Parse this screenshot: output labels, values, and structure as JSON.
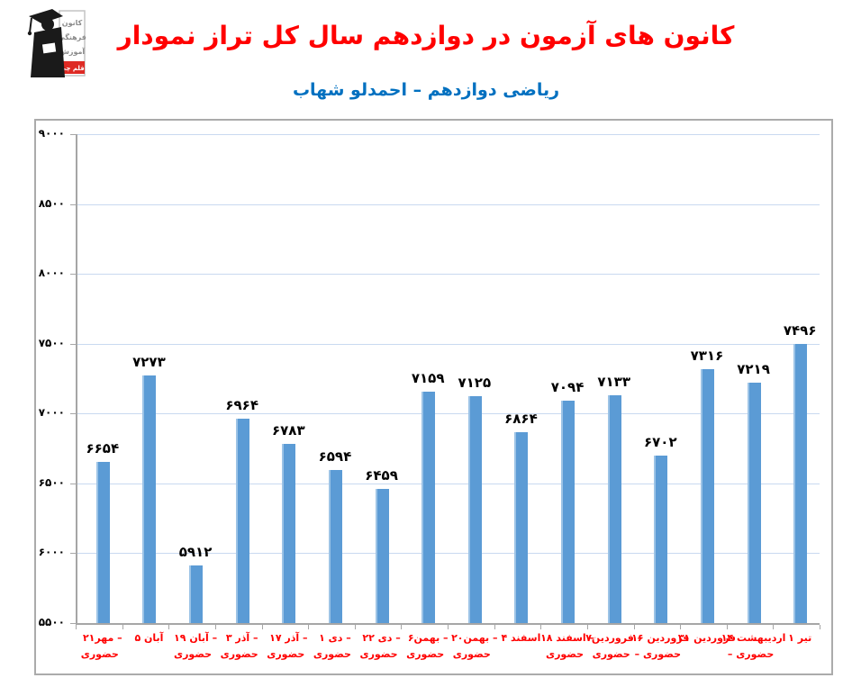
{
  "header": {
    "title": "نمودار تراز کل سال دوازدهم در آزمون های کانون",
    "subtitle": "شهاب احمدلو – دوازدهم ریاضی",
    "title_color": "#FF0000",
    "subtitle_color": "#0070C0",
    "logo": {
      "line1": "کانون",
      "line2": "فرهنگی",
      "line3": "آموزش",
      "badge": "قلم چی"
    }
  },
  "chart_data": {
    "type": "bar",
    "title": "نمودار تراز کل سال دوازدهم در آزمون های کانون",
    "subtitle": "شهاب احمدلو – دوازدهم ریاضی",
    "xlabel": "",
    "ylabel": "",
    "ylim": [
      5500,
      9000
    ],
    "ytick_step": 500,
    "grid": true,
    "legend": "none",
    "bar_color": "#5B9BD5",
    "bar_highlight_color": "#9CC3E6",
    "gridline_color": "#C9D9F0",
    "axis_color": "#A6A6A6",
    "value_label_color": "#000000",
    "xtick_label_color": "#FF0000",
    "yticks": [
      {
        "value": 9000,
        "label": "۹۰۰۰"
      },
      {
        "value": 8500,
        "label": "۸۵۰۰"
      },
      {
        "value": 8000,
        "label": "۸۰۰۰"
      },
      {
        "value": 7500,
        "label": "۷۵۰۰"
      },
      {
        "value": 7000,
        "label": "۷۰۰۰"
      },
      {
        "value": 6500,
        "label": "۶۵۰۰"
      },
      {
        "value": 6000,
        "label": "۶۰۰۰"
      },
      {
        "value": 5500,
        "label": "۵۵۰۰"
      }
    ],
    "categories": [
      {
        "line1": "۲۱مهر –",
        "line2": "حضوری",
        "value": 6654,
        "value_label": "۶۶۵۴"
      },
      {
        "line1": "۵ آبان",
        "line2": "",
        "value": 7273,
        "value_label": "۷۲۷۳"
      },
      {
        "line1": "۱۹ آبان –",
        "line2": "حضوری",
        "value": 5912,
        "value_label": "۵۹۱۲"
      },
      {
        "line1": "۳ آذر –",
        "line2": "حضوری",
        "value": 6964,
        "value_label": "۶۹۶۴"
      },
      {
        "line1": "۱۷ آذر –",
        "line2": "حضوری",
        "value": 6783,
        "value_label": "۶۷۸۳"
      },
      {
        "line1": "۱ دی –",
        "line2": "حضوری",
        "value": 6594,
        "value_label": "۶۵۹۴"
      },
      {
        "line1": "۲۲ دی –",
        "line2": "حضوری",
        "value": 6459,
        "value_label": "۶۴۵۹"
      },
      {
        "line1": "۶بهمن –",
        "line2": "حضوری",
        "value": 7159,
        "value_label": "۷۱۵۹"
      },
      {
        "line1": "۲۰بهمن –",
        "line2": "حضوری",
        "value": 7125,
        "value_label": "۷۱۲۵"
      },
      {
        "line1": "۴ اسفند",
        "line2": "",
        "value": 6864,
        "value_label": "۶۸۶۴"
      },
      {
        "line1": "۱۸ اسفند –",
        "line2": "حضوری",
        "value": 7094,
        "value_label": "۷۰۹۴"
      },
      {
        "line1": "۷فروردین –",
        "line2": "حضوری",
        "value": 7133,
        "value_label": "۷۱۳۳"
      },
      {
        "line1": "۱۶ فروردین",
        "line2": "– حضوری",
        "value": 6702,
        "value_label": "۶۷۰۲"
      },
      {
        "line1": "۳۱ فروردین",
        "line2": "",
        "value": 7316,
        "value_label": "۷۳۱۶"
      },
      {
        "line1": "۱۴ اردیبهشت",
        "line2": "– حضوری",
        "value": 7219,
        "value_label": "۷۲۱۹"
      },
      {
        "line1": "۱ تیر",
        "line2": "",
        "value": 7496,
        "value_label": "۷۴۹۶"
      }
    ]
  }
}
